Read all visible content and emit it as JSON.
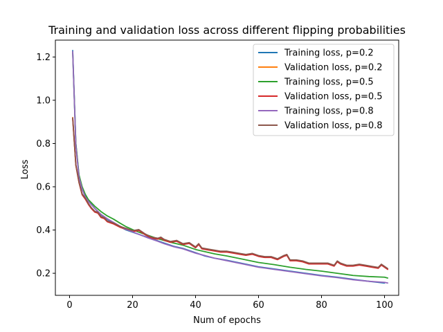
{
  "chart_data": {
    "type": "line",
    "title": "Training and validation loss across different flipping probabilities",
    "xlabel": "Num of epochs",
    "ylabel": "Loss",
    "xlim": [
      -4.5,
      104.5
    ],
    "ylim": [
      0.098,
      1.278
    ],
    "xticks": [
      0,
      20,
      40,
      60,
      80,
      100
    ],
    "yticks": [
      0.2,
      0.4,
      0.6,
      0.8,
      1.0,
      1.2
    ],
    "ytick_labels": [
      "0.2",
      "0.4",
      "0.6",
      "0.8",
      "1.0",
      "1.2"
    ],
    "legend": "upper right",
    "grid": false,
    "series": [
      {
        "name": "Training loss, p=0.2",
        "color": "#1f77b4",
        "x": [
          1,
          2,
          3,
          4,
          5,
          6,
          8,
          10,
          12,
          14,
          16,
          18,
          20,
          22,
          25,
          28,
          30,
          33,
          36,
          40,
          43,
          46,
          50,
          55,
          60,
          65,
          70,
          75,
          80,
          85,
          90,
          95,
          100
        ],
        "y": [
          1.23,
          0.8,
          0.65,
          0.59,
          0.555,
          0.535,
          0.5,
          0.47,
          0.45,
          0.43,
          0.415,
          0.4,
          0.39,
          0.38,
          0.365,
          0.35,
          0.34,
          0.325,
          0.315,
          0.295,
          0.28,
          0.27,
          0.26,
          0.245,
          0.23,
          0.22,
          0.21,
          0.2,
          0.19,
          0.182,
          0.172,
          0.163,
          0.155
        ]
      },
      {
        "name": "Validation loss, p=0.2",
        "color": "#ff7f0e",
        "x": [
          1,
          2,
          3,
          4,
          5,
          6,
          7,
          8,
          9,
          10,
          11,
          12,
          14,
          16,
          18,
          20,
          22,
          24,
          26,
          28,
          29,
          30,
          32,
          34,
          36,
          38,
          40,
          41,
          42,
          44,
          46,
          48,
          50,
          52,
          54,
          56,
          58,
          60,
          62,
          64,
          66,
          68,
          69,
          70,
          72,
          74,
          76,
          78,
          80,
          82,
          84,
          85,
          86,
          88,
          90,
          92,
          94,
          96,
          98,
          99,
          100,
          101
        ],
        "y": [
          0.92,
          0.7,
          0.62,
          0.565,
          0.545,
          0.52,
          0.5,
          0.485,
          0.48,
          0.46,
          0.455,
          0.44,
          0.43,
          0.415,
          0.405,
          0.395,
          0.4,
          0.38,
          0.365,
          0.36,
          0.365,
          0.355,
          0.345,
          0.35,
          0.335,
          0.34,
          0.32,
          0.335,
          0.315,
          0.31,
          0.305,
          0.3,
          0.3,
          0.295,
          0.29,
          0.285,
          0.29,
          0.28,
          0.275,
          0.275,
          0.265,
          0.28,
          0.285,
          0.26,
          0.26,
          0.255,
          0.245,
          0.245,
          0.245,
          0.245,
          0.235,
          0.255,
          0.245,
          0.235,
          0.235,
          0.24,
          0.235,
          0.23,
          0.225,
          0.24,
          0.23,
          0.22
        ]
      },
      {
        "name": "Training loss, p=0.5",
        "color": "#2ca02c",
        "x": [
          1,
          2,
          3,
          4,
          5,
          6,
          8,
          10,
          12,
          14,
          16,
          18,
          20,
          22,
          25,
          28,
          30,
          33,
          36,
          40,
          43,
          46,
          50,
          55,
          60,
          65,
          70,
          75,
          80,
          85,
          90,
          95,
          100,
          101
        ],
        "y": [
          1.22,
          0.8,
          0.655,
          0.6,
          0.565,
          0.54,
          0.51,
          0.485,
          0.465,
          0.45,
          0.432,
          0.415,
          0.402,
          0.39,
          0.375,
          0.36,
          0.352,
          0.34,
          0.33,
          0.31,
          0.3,
          0.29,
          0.28,
          0.265,
          0.25,
          0.24,
          0.228,
          0.218,
          0.21,
          0.2,
          0.19,
          0.185,
          0.182,
          0.178
        ]
      },
      {
        "name": "Validation loss, p=0.5",
        "color": "#d62728",
        "x": [
          1,
          2,
          3,
          4,
          5,
          6,
          7,
          8,
          9,
          10,
          11,
          12,
          14,
          16,
          18,
          20,
          22,
          24,
          26,
          28,
          29,
          30,
          32,
          34,
          36,
          38,
          40,
          41,
          42,
          44,
          46,
          48,
          50,
          52,
          54,
          56,
          58,
          60,
          62,
          64,
          66,
          68,
          69,
          70,
          72,
          74,
          76,
          78,
          80,
          82,
          84,
          85,
          86,
          88,
          90,
          92,
          94,
          96,
          98,
          99,
          100,
          101
        ],
        "y": [
          0.915,
          0.7,
          0.62,
          0.563,
          0.543,
          0.518,
          0.498,
          0.483,
          0.478,
          0.458,
          0.453,
          0.438,
          0.428,
          0.413,
          0.403,
          0.393,
          0.398,
          0.378,
          0.363,
          0.358,
          0.363,
          0.353,
          0.343,
          0.348,
          0.333,
          0.338,
          0.318,
          0.333,
          0.313,
          0.308,
          0.303,
          0.298,
          0.298,
          0.293,
          0.288,
          0.283,
          0.288,
          0.278,
          0.273,
          0.273,
          0.263,
          0.278,
          0.283,
          0.258,
          0.258,
          0.253,
          0.243,
          0.243,
          0.243,
          0.243,
          0.233,
          0.253,
          0.243,
          0.233,
          0.233,
          0.238,
          0.233,
          0.228,
          0.223,
          0.238,
          0.228,
          0.218
        ]
      },
      {
        "name": "Training loss, p=0.8",
        "color": "#9467bd",
        "x": [
          1,
          2,
          3,
          4,
          5,
          6,
          8,
          10,
          12,
          14,
          16,
          18,
          20,
          22,
          25,
          28,
          30,
          33,
          36,
          40,
          43,
          46,
          50,
          55,
          60,
          65,
          70,
          75,
          80,
          85,
          90,
          95,
          100,
          101
        ],
        "y": [
          1.225,
          0.79,
          0.645,
          0.59,
          0.553,
          0.532,
          0.5,
          0.472,
          0.452,
          0.435,
          0.418,
          0.403,
          0.392,
          0.38,
          0.363,
          0.348,
          0.337,
          0.323,
          0.313,
          0.293,
          0.282,
          0.27,
          0.258,
          0.243,
          0.228,
          0.218,
          0.208,
          0.198,
          0.188,
          0.18,
          0.17,
          0.163,
          0.158,
          0.155
        ]
      },
      {
        "name": "Validation loss, p=0.8",
        "color": "#8c564b",
        "x": [
          1,
          2,
          3,
          4,
          5,
          6,
          7,
          8,
          9,
          10,
          11,
          12,
          14,
          16,
          18,
          20,
          22,
          24,
          26,
          28,
          29,
          30,
          32,
          34,
          36,
          38,
          40,
          41,
          42,
          44,
          46,
          48,
          50,
          52,
          54,
          56,
          58,
          60,
          62,
          64,
          66,
          68,
          69,
          70,
          72,
          74,
          76,
          78,
          80,
          82,
          84,
          85,
          86,
          88,
          90,
          92,
          94,
          96,
          98,
          99,
          100,
          101
        ],
        "y": [
          0.918,
          0.702,
          0.622,
          0.567,
          0.547,
          0.522,
          0.502,
          0.487,
          0.482,
          0.462,
          0.457,
          0.442,
          0.432,
          0.417,
          0.407,
          0.397,
          0.402,
          0.382,
          0.367,
          0.362,
          0.367,
          0.357,
          0.347,
          0.352,
          0.337,
          0.342,
          0.322,
          0.337,
          0.317,
          0.312,
          0.307,
          0.302,
          0.302,
          0.297,
          0.292,
          0.287,
          0.292,
          0.282,
          0.277,
          0.277,
          0.267,
          0.282,
          0.287,
          0.262,
          0.262,
          0.257,
          0.247,
          0.247,
          0.247,
          0.247,
          0.237,
          0.257,
          0.247,
          0.237,
          0.237,
          0.242,
          0.237,
          0.232,
          0.227,
          0.242,
          0.232,
          0.222
        ]
      }
    ]
  }
}
